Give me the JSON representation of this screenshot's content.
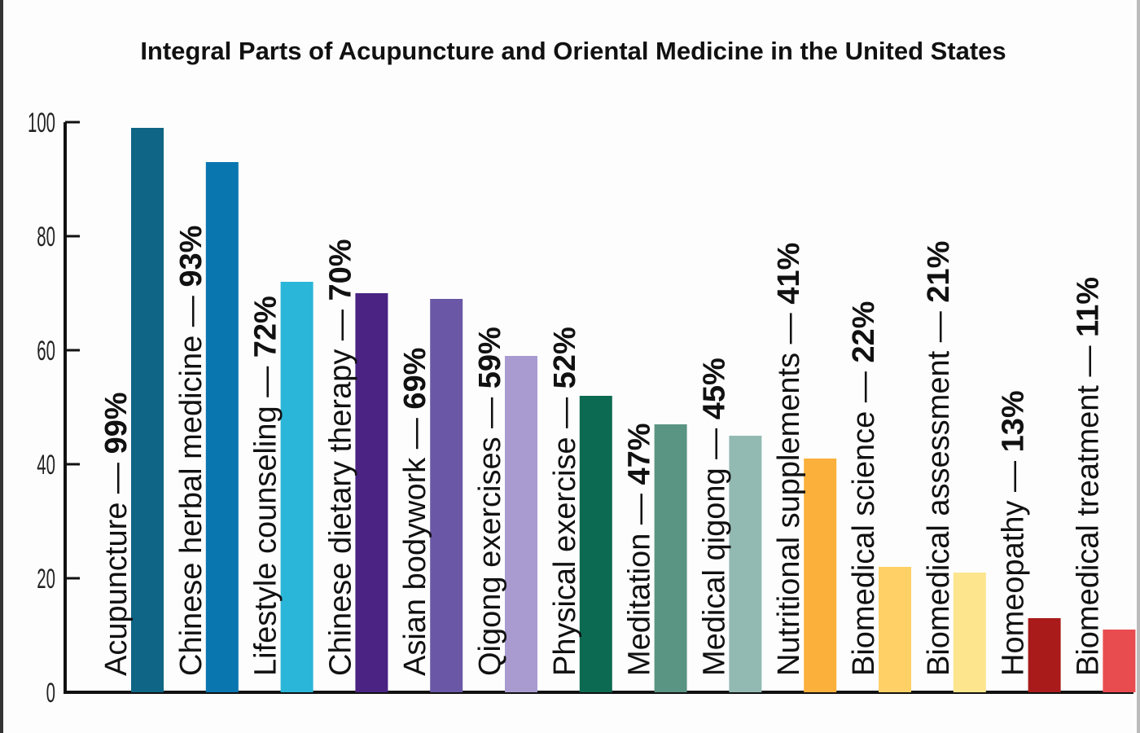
{
  "chart_data": {
    "type": "bar",
    "title": "Integral Parts of Acupuncture and Oriental Medicine in the United States",
    "xlabel": "",
    "ylabel": "",
    "ylim": [
      0,
      100
    ],
    "yticks": [
      0,
      20,
      40,
      60,
      80,
      100
    ],
    "grid": false,
    "categories": [
      "Acupuncture",
      "Chinese herbal medicine",
      "Lifestyle counseling",
      "Chinese dietary therapy",
      "Asian bodywork",
      "Qigong exercises",
      "Physical exercise",
      "Meditation",
      "Medical qigong",
      "Nutritional supplements",
      "Biomedical science",
      "Biomedical assessment",
      "Homeopathy",
      "Biomedical treatment"
    ],
    "values": [
      99,
      93,
      72,
      70,
      69,
      59,
      52,
      47,
      45,
      41,
      22,
      21,
      13,
      11
    ],
    "value_labels": [
      "99%",
      "93%",
      "72%",
      "70%",
      "69%",
      "59%",
      "52%",
      "47%",
      "45%",
      "41%",
      "22%",
      "21%",
      "13%",
      "11%"
    ],
    "separator": " — ",
    "colors": [
      "#0e6585",
      "#0a76b0",
      "#2ab6d8",
      "#4a2383",
      "#6a58a6",
      "#a99bd0",
      "#0d6a52",
      "#5a9482",
      "#93bab2",
      "#fbb03b",
      "#fed066",
      "#fde58e",
      "#a91a1a",
      "#e84c4f"
    ]
  }
}
